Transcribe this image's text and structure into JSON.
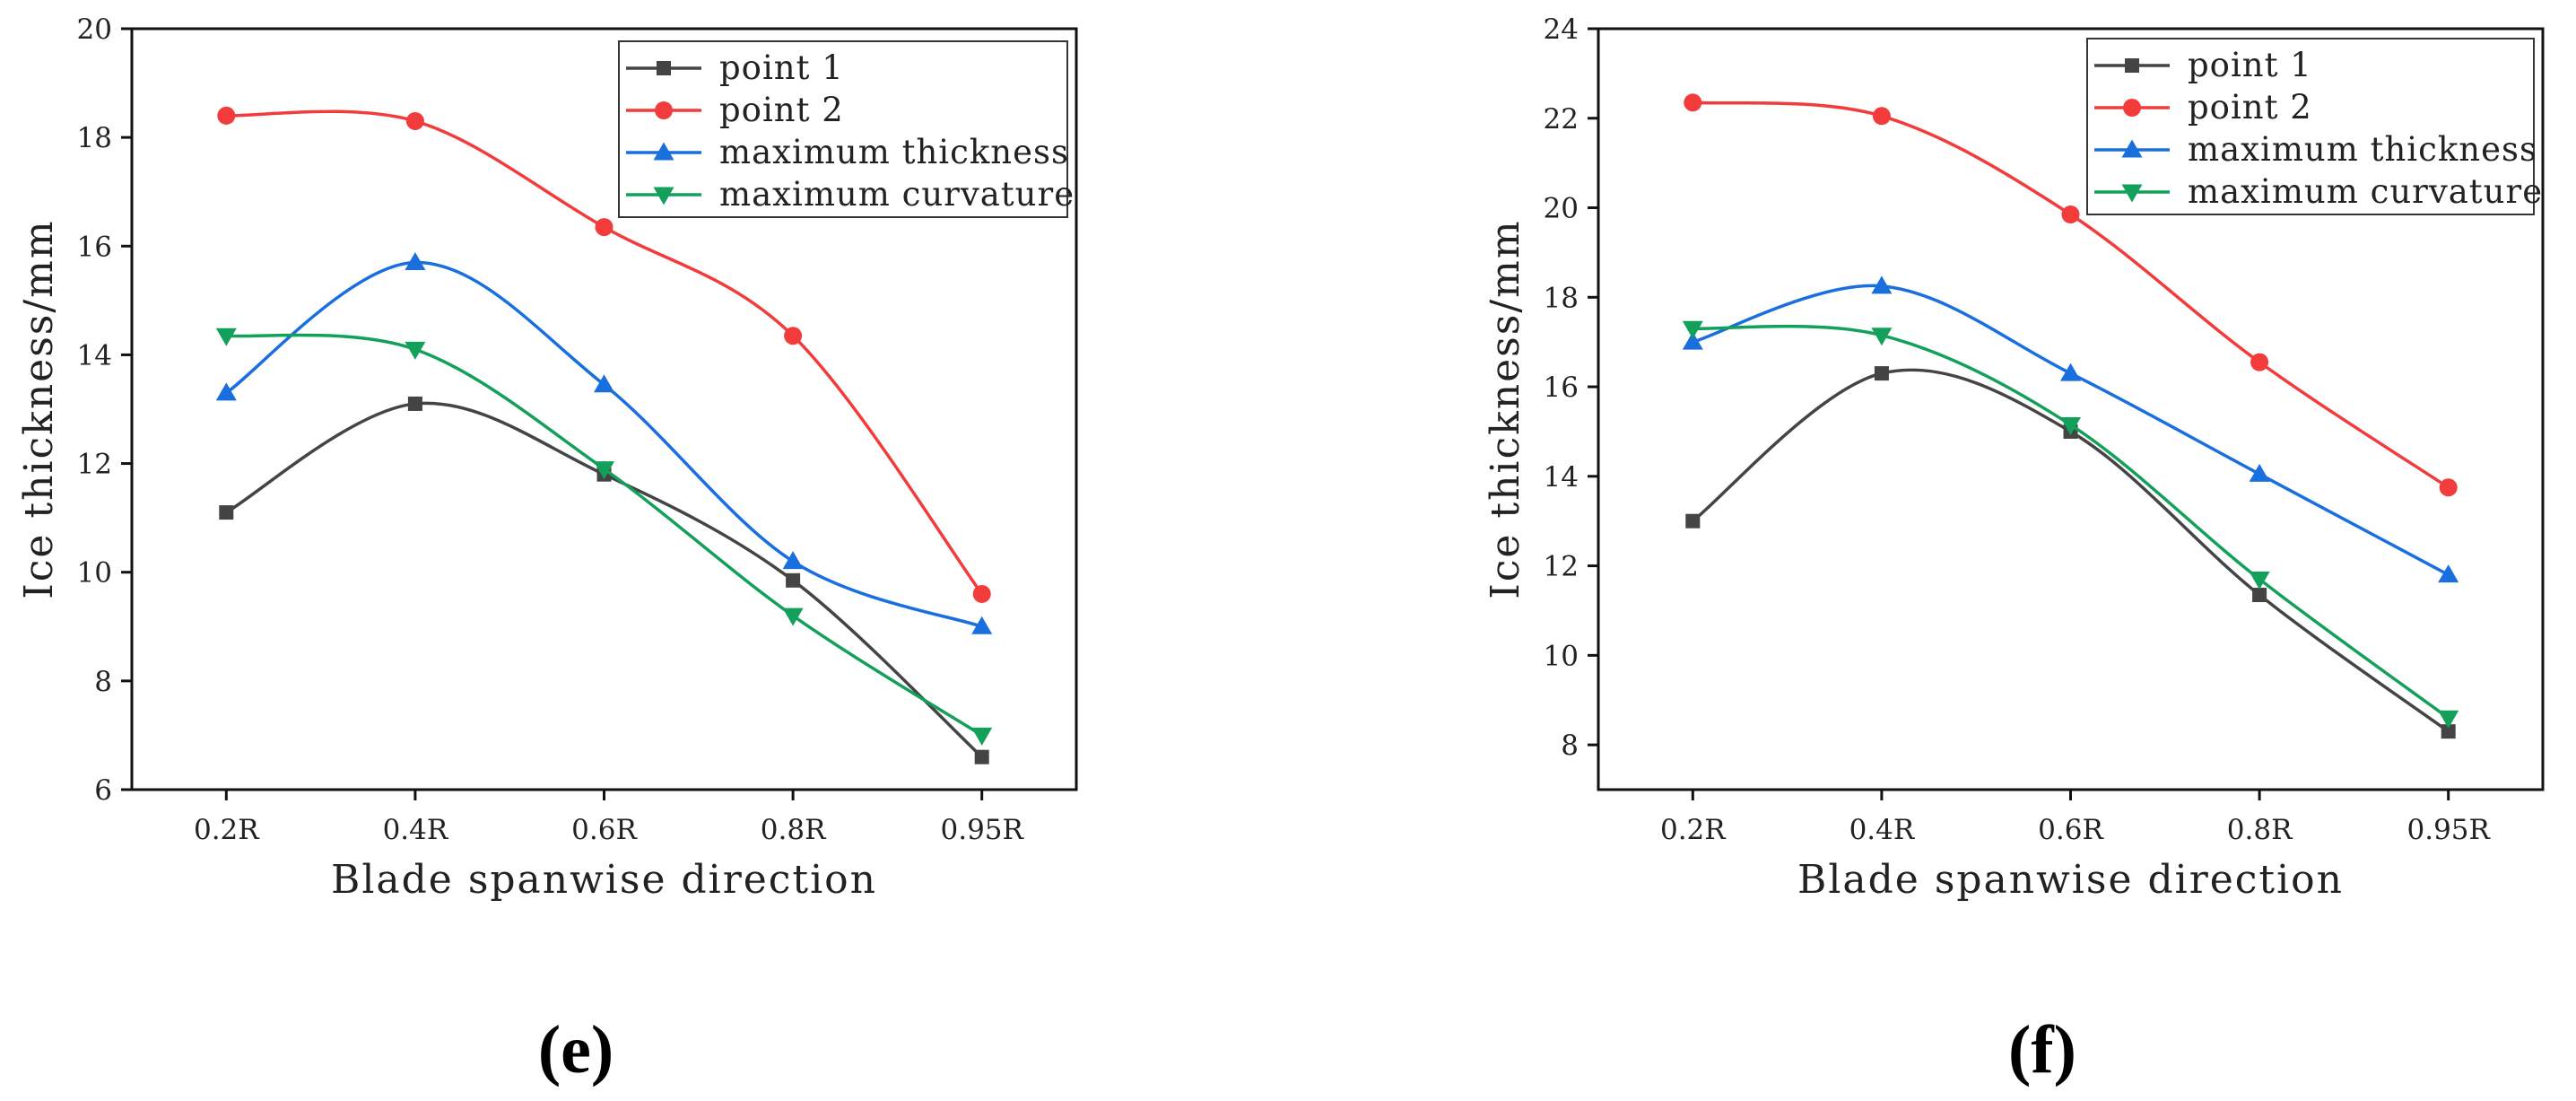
{
  "chart_data": [
    {
      "type": "line",
      "panel_label": "(e)",
      "xlabel": "Blade spanwise direction",
      "ylabel": "Ice thickness/mm",
      "categories": [
        "0.2R",
        "0.4R",
        "0.6R",
        "0.8R",
        "0.95R"
      ],
      "ylim": [
        6,
        20
      ],
      "yticks": [
        "6",
        "8",
        "10",
        "12",
        "14",
        "16",
        "18",
        "20"
      ],
      "legend_position": "top-right",
      "series": [
        {
          "name": "point 1",
          "color": "#444444",
          "marker": "square",
          "values": [
            11.1,
            13.1,
            11.8,
            9.85,
            6.6
          ]
        },
        {
          "name": "point 2",
          "color": "#f23c3c",
          "marker": "circle",
          "values": [
            18.4,
            18.3,
            16.35,
            14.35,
            9.6
          ]
        },
        {
          "name": "maximum thickness",
          "color": "#1a6fdf",
          "marker": "triangle-up",
          "values": [
            13.3,
            15.7,
            13.45,
            10.2,
            9.0
          ]
        },
        {
          "name": "maximum curvature",
          "color": "#12a05a",
          "marker": "triangle-down",
          "values": [
            14.35,
            14.1,
            11.9,
            9.2,
            7.0
          ]
        }
      ]
    },
    {
      "type": "line",
      "panel_label": "(f)",
      "xlabel": "Blade spanwise direction",
      "ylabel": "Ice thickness/mm",
      "categories": [
        "0.2R",
        "0.4R",
        "0.6R",
        "0.8R",
        "0.95R"
      ],
      "ylim": [
        7,
        24
      ],
      "yticks": [
        "8",
        "10",
        "12",
        "14",
        "16",
        "18",
        "20",
        "22",
        "24"
      ],
      "legend_position": "top-right",
      "series": [
        {
          "name": "point 1",
          "color": "#444444",
          "marker": "square",
          "values": [
            13.0,
            16.3,
            15.0,
            11.35,
            8.3
          ]
        },
        {
          "name": "point 2",
          "color": "#f23c3c",
          "marker": "circle",
          "values": [
            22.35,
            22.05,
            19.85,
            16.55,
            13.75
          ]
        },
        {
          "name": "maximum thickness",
          "color": "#1a6fdf",
          "marker": "triangle-up",
          "values": [
            17.0,
            18.25,
            16.3,
            14.05,
            11.8
          ]
        },
        {
          "name": "maximum curvature",
          "color": "#12a05a",
          "marker": "triangle-down",
          "values": [
            17.3,
            17.15,
            15.15,
            11.7,
            8.6
          ]
        }
      ]
    }
  ]
}
